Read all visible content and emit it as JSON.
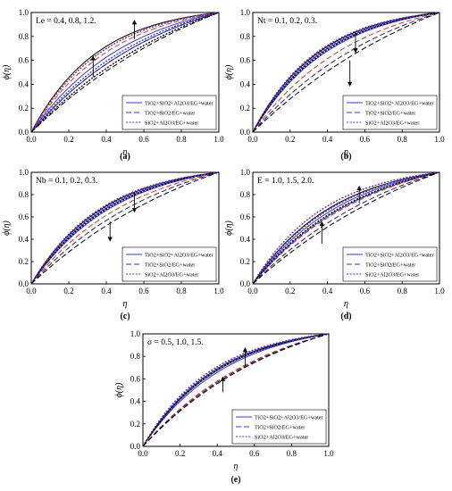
{
  "figure": {
    "panels_label_note": "",
    "legend": [
      {
        "label": "TiO2+SiO2+Al2O3/EG+water"
      },
      {
        "label": "TiO2+SiO2/EG+water"
      },
      {
        "label": "SiO2+Al2O3/EG+water"
      }
    ],
    "colors": {
      "hybrid3_black": "#000000",
      "hybrid3_blue": "#3a3ad0",
      "tio2_sio2_red": "#d03a2a",
      "tio2_sio2_navy": "#22227a",
      "sio2_al2o3_purple": "#7a2a9a"
    }
  },
  "chart_data": [
    {
      "type": "line",
      "panel": "(a)",
      "param_text": "Le = 0.4, 0.8, 1.2.",
      "xlabel": "η",
      "ylabel": "ϕ(η)",
      "xlim": [
        0,
        1
      ],
      "ylim": [
        0,
        1
      ],
      "xticks": [
        "0.0",
        "0.2",
        "0.4",
        "0.6",
        "0.8",
        "1.0"
      ],
      "yticks": [
        "0.0",
        "0.2",
        "0.4",
        "0.6",
        "0.8",
        "1.0"
      ],
      "arrow": "up",
      "families": [
        {
          "series": "TiO2+SiO2+Al2O3/EG+water",
          "style": "solid",
          "k": [
            2.8,
            1.9,
            1.4
          ]
        },
        {
          "series": "TiO2+SiO2/EG+water",
          "style": "dashed",
          "k": [
            2.3,
            1.4,
            0.9
          ]
        },
        {
          "series": "SiO2+Al2O3/EG+water",
          "style": "dotted",
          "k": [
            2.6,
            1.6,
            1.1
          ]
        }
      ],
      "legend_position": "bottom-right"
    },
    {
      "type": "line",
      "panel": "(b)",
      "param_text": "Nt = 0.1, 0.2, 0.3.",
      "xlabel": "η",
      "ylabel": "ϕ(η)",
      "xlim": [
        0,
        1
      ],
      "ylim": [
        0,
        1
      ],
      "xticks": [
        "0.0",
        "0.2",
        "0.4",
        "0.6",
        "0.8",
        "1.0"
      ],
      "yticks": [
        "0.0",
        "0.2",
        "0.4",
        "0.6",
        "0.8",
        "1.0"
      ],
      "arrow": "down",
      "families": [
        {
          "series": "TiO2+SiO2+Al2O3/EG+water",
          "style": "solid",
          "k": [
            2.8,
            2.6,
            2.4
          ]
        },
        {
          "series": "TiO2+SiO2/EG+water",
          "style": "dashed",
          "k": [
            1.8,
            1.3,
            0.9
          ]
        },
        {
          "series": "SiO2+Al2O3/EG+water",
          "style": "dotted",
          "k": [
            2.9,
            2.7,
            2.5
          ]
        }
      ],
      "legend_position": "bottom-right"
    },
    {
      "type": "line",
      "panel": "(c)",
      "param_text": "Nb = 0.1, 0.2, 0.3.",
      "xlabel": "η",
      "ylabel": "ϕ(η)",
      "xlim": [
        0,
        1
      ],
      "ylim": [
        0,
        1
      ],
      "xticks": [
        "0.0",
        "0.2",
        "0.4",
        "0.6",
        "0.8",
        "1.0"
      ],
      "yticks": [
        "0.0",
        "0.2",
        "0.4",
        "0.6",
        "0.8",
        "1.0"
      ],
      "arrow": "down",
      "families": [
        {
          "series": "TiO2+SiO2+Al2O3/EG+water",
          "style": "solid",
          "k": [
            2.6,
            2.4,
            2.2
          ]
        },
        {
          "series": "TiO2+SiO2/EG+water",
          "style": "dashed",
          "k": [
            1.8,
            1.4,
            1.0
          ]
        },
        {
          "series": "SiO2+Al2O3/EG+water",
          "style": "dotted",
          "k": [
            2.7,
            2.5,
            2.3
          ]
        }
      ],
      "legend_position": "bottom-right"
    },
    {
      "type": "line",
      "panel": "(d)",
      "param_text": "E = 1.0, 1.5, 2.0.",
      "xlabel": "η",
      "ylabel": "ϕ(η)",
      "xlim": [
        0,
        1
      ],
      "ylim": [
        0,
        1
      ],
      "xticks": [
        "0.0",
        "0.2",
        "0.4",
        "0.6",
        "0.8",
        "1.0"
      ],
      "yticks": [
        "0.0",
        "0.2",
        "0.4",
        "0.6",
        "0.8",
        "1.0"
      ],
      "arrow": "up",
      "families": [
        {
          "series": "TiO2+SiO2+Al2O3/EG+water",
          "style": "solid",
          "k": [
            2.3,
            2.0,
            1.7
          ]
        },
        {
          "series": "TiO2+SiO2/EG+water",
          "style": "dashed",
          "k": [
            1.6,
            1.2,
            0.9
          ]
        },
        {
          "series": "SiO2+Al2O3/EG+water",
          "style": "dotted",
          "k": [
            2.6,
            2.2,
            1.8
          ]
        }
      ],
      "legend_position": "bottom-right"
    },
    {
      "type": "line",
      "panel": "(e)",
      "param_text": "σ = 0.5, 1.0, 1.5.",
      "xlabel": "η",
      "ylabel": "ϕ(η)",
      "xlim": [
        0,
        1
      ],
      "ylim": [
        0,
        1
      ],
      "xticks": [
        "0.0",
        "0.2",
        "0.4",
        "0.6",
        "0.8",
        "1.0"
      ],
      "yticks": [
        "0.0",
        "0.2",
        "0.4",
        "0.6",
        "0.8",
        "1.0"
      ],
      "arrow": "up",
      "families": [
        {
          "series": "TiO2+SiO2+Al2O3/EG+water",
          "style": "solid",
          "k": [
            2.5,
            2.35,
            2.2
          ]
        },
        {
          "series": "TiO2+SiO2/EG+water",
          "style": "dashed",
          "k": [
            1.5,
            1.4,
            1.3
          ]
        },
        {
          "series": "SiO2+Al2O3/EG+water",
          "style": "dotted",
          "k": [
            2.7,
            2.55,
            2.4
          ]
        }
      ],
      "legend_position": "bottom-right"
    }
  ]
}
